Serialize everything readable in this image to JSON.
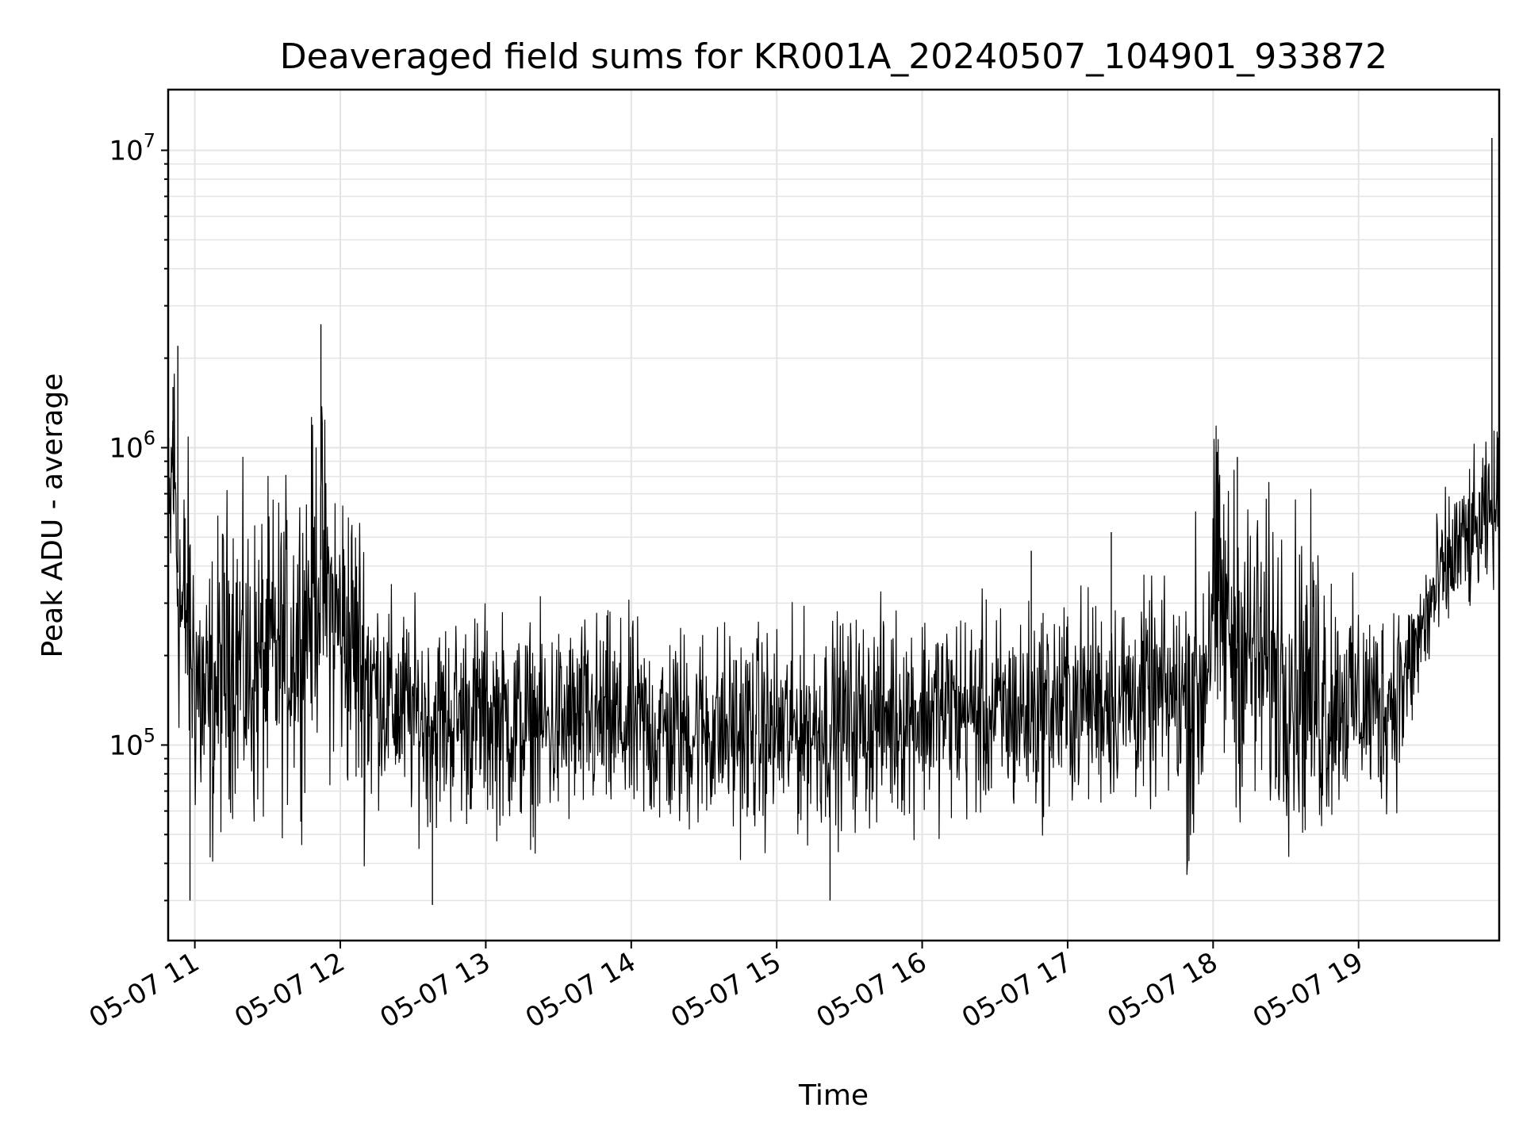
{
  "chart_data": {
    "type": "line",
    "title": "Deaveraged field sums for KR001A_20240507_104901_933872",
    "xlabel": "Time",
    "ylabel": "Peak ADU - average",
    "yscale": "log",
    "ylim": [
      22000,
      16000000
    ],
    "xlim": [
      "2024-05-07T10:49",
      "2024-05-07T19:58"
    ],
    "grid": true,
    "line_color": "#000000",
    "x_ticks": [
      {
        "label": "05-07 11",
        "t": "2024-05-07T11:00"
      },
      {
        "label": "05-07 12",
        "t": "2024-05-07T12:00"
      },
      {
        "label": "05-07 13",
        "t": "2024-05-07T13:00"
      },
      {
        "label": "05-07 14",
        "t": "2024-05-07T14:00"
      },
      {
        "label": "05-07 15",
        "t": "2024-05-07T15:00"
      },
      {
        "label": "05-07 16",
        "t": "2024-05-07T16:00"
      },
      {
        "label": "05-07 17",
        "t": "2024-05-07T17:00"
      },
      {
        "label": "05-07 18",
        "t": "2024-05-07T18:00"
      },
      {
        "label": "05-07 19",
        "t": "2024-05-07T19:00"
      }
    ],
    "y_ticks": [
      {
        "base": "10",
        "exp": "5",
        "value": 100000
      },
      {
        "base": "10",
        "exp": "6",
        "value": 1000000
      },
      {
        "base": "10",
        "exp": "7",
        "value": 10000000
      }
    ],
    "series": [
      {
        "x": [
          "2024-05-07T10:49",
          "2024-05-07T10:51",
          "2024-05-07T10:53",
          "2024-05-07T10:55",
          "2024-05-07T10:57",
          "2024-05-07T10:59",
          "2024-05-07T11:05",
          "2024-05-07T11:15",
          "2024-05-07T11:22",
          "2024-05-07T11:30",
          "2024-05-07T11:38",
          "2024-05-07T11:45",
          "2024-05-07T11:52",
          "2024-05-07T11:56",
          "2024-05-07T12:00",
          "2024-05-07T12:06",
          "2024-05-07T12:12",
          "2024-05-07T12:20",
          "2024-05-07T12:30",
          "2024-05-07T12:40",
          "2024-05-07T12:50",
          "2024-05-07T13:00",
          "2024-05-07T13:15",
          "2024-05-07T13:30",
          "2024-05-07T13:45",
          "2024-05-07T14:00",
          "2024-05-07T14:15",
          "2024-05-07T14:30",
          "2024-05-07T14:45",
          "2024-05-07T15:00",
          "2024-05-07T15:15",
          "2024-05-07T15:30",
          "2024-05-07T15:45",
          "2024-05-07T16:00",
          "2024-05-07T16:15",
          "2024-05-07T16:30",
          "2024-05-07T16:45",
          "2024-05-07T17:00",
          "2024-05-07T17:15",
          "2024-05-07T17:30",
          "2024-05-07T17:45",
          "2024-05-07T17:55",
          "2024-05-07T18:00",
          "2024-05-07T18:05",
          "2024-05-07T18:10",
          "2024-05-07T18:20",
          "2024-05-07T18:30",
          "2024-05-07T18:45",
          "2024-05-07T19:00",
          "2024-05-07T19:10",
          "2024-05-07T19:20",
          "2024-05-07T19:30",
          "2024-05-07T19:40",
          "2024-05-07T19:50",
          "2024-05-07T19:52",
          "2024-05-07T19:55",
          "2024-05-07T19:58"
        ],
        "y": [
          350000,
          1000000,
          380000,
          250000,
          300000,
          200000,
          120000,
          230000,
          170000,
          190000,
          210000,
          260000,
          420000,
          280000,
          250000,
          210000,
          170000,
          140000,
          125000,
          120000,
          125000,
          125000,
          115000,
          115000,
          120000,
          115000,
          110000,
          115000,
          110000,
          110000,
          115000,
          120000,
          125000,
          130000,
          130000,
          125000,
          130000,
          140000,
          145000,
          145000,
          145000,
          150000,
          330000,
          260000,
          220000,
          190000,
          180000,
          150000,
          140000,
          135000,
          170000,
          300000,
          450000,
          520000,
          550000,
          600000,
          650000
        ],
        "spikes": [
          {
            "t": "2024-05-07T10:51",
            "y": 1600000
          },
          {
            "t": "2024-05-07T10:53",
            "y": 2200000
          },
          {
            "t": "2024-05-07T10:58",
            "y": 30000
          },
          {
            "t": "2024-05-07T11:52",
            "y": 2600000
          },
          {
            "t": "2024-05-07T12:38",
            "y": 29000
          },
          {
            "t": "2024-05-07T15:22",
            "y": 30000
          },
          {
            "t": "2024-05-07T16:45",
            "y": 450000
          },
          {
            "t": "2024-05-07T17:18",
            "y": 520000
          },
          {
            "t": "2024-05-07T18:10",
            "y": 930000
          },
          {
            "t": "2024-05-07T19:55",
            "y": 11000000
          }
        ]
      }
    ]
  }
}
